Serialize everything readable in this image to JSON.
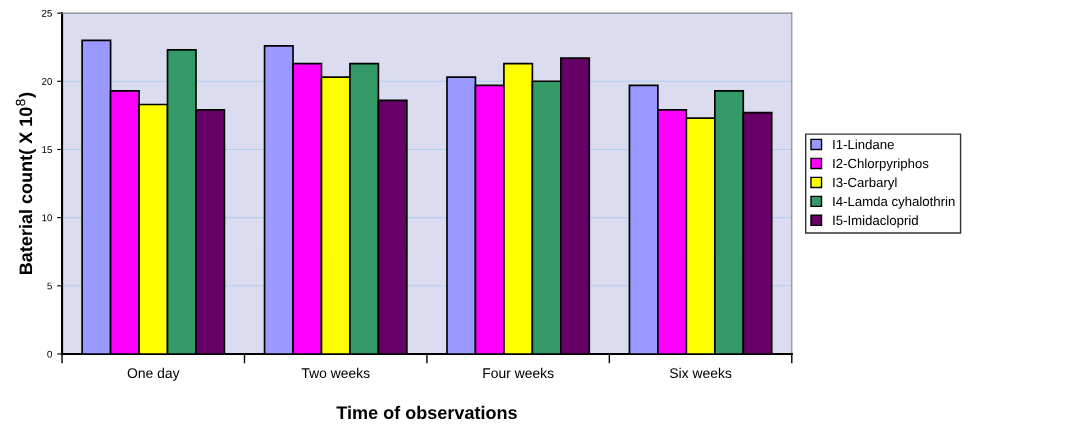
{
  "chart_data": {
    "type": "bar",
    "xlabel": "Time of observations",
    "ylabel": "Baterial count( X 10$^{8}$)",
    "categories": [
      "One day",
      "Two weeks",
      "Four weeks",
      "Six weeks"
    ],
    "series": [
      {
        "name": "I1-Lindane",
        "color": "#9999ff",
        "values": [
          23.0,
          22.6,
          20.3,
          19.7
        ]
      },
      {
        "name": "I2-Chlorpyriphos",
        "color": "#ff00ff",
        "values": [
          19.3,
          21.3,
          19.7,
          17.9
        ]
      },
      {
        "name": "I3-Carbaryl",
        "color": "#ffff00",
        "values": [
          18.3,
          20.3,
          21.3,
          17.3
        ]
      },
      {
        "name": "I4-Lamda cyhalothrin",
        "color": "#339966",
        "values": [
          22.3,
          21.3,
          20.0,
          19.3
        ]
      },
      {
        "name": "I5-Imidacloprid",
        "color": "#660066",
        "values": [
          17.9,
          18.6,
          21.7,
          17.7
        ]
      }
    ],
    "ylim": [
      0,
      25
    ],
    "yticks": [
      0,
      5,
      10,
      15,
      20,
      25
    ],
    "grid": "y",
    "legend": "right"
  }
}
